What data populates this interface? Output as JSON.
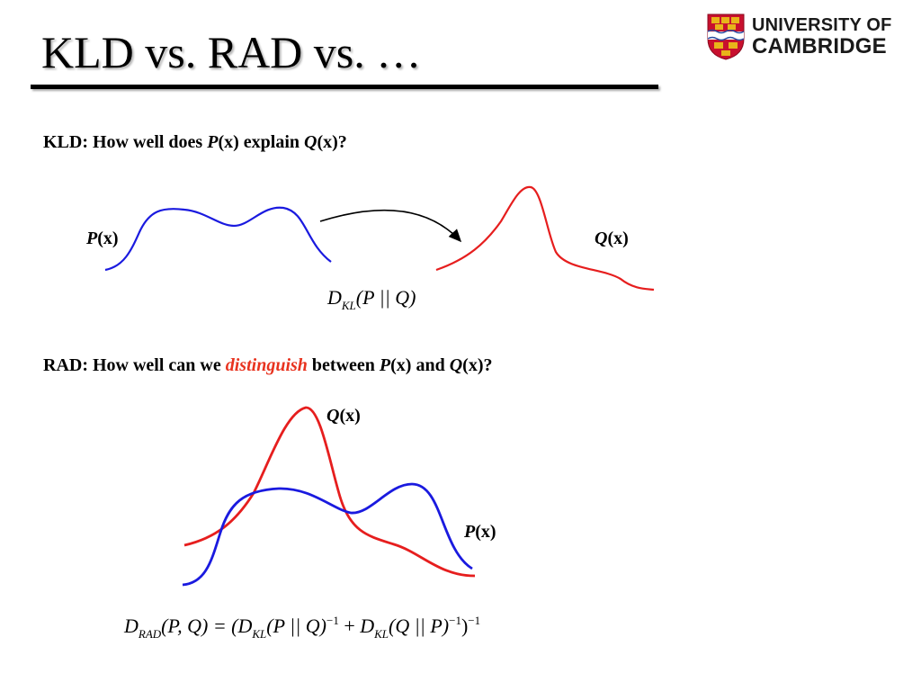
{
  "slide": {
    "title": "KLD vs. RAD vs. …"
  },
  "logo": {
    "line1": "UNIVERSITY OF",
    "line2": "CAMBRIDGE",
    "shield_colors": {
      "red": "#c8102e",
      "gold": "#e8b41a"
    }
  },
  "kld": {
    "question_prefix": "KLD: How well does ",
    "p": "P",
    "x_explain": "(x) explain ",
    "q": "Q",
    "x_end": "(x)?",
    "label_p_var": "P",
    "label_p_rest": "(x)",
    "label_q_var": "Q",
    "label_q_rest": "(x)",
    "formula": {
      "D": "D",
      "sub": "KL",
      "args": "(P || Q)"
    }
  },
  "rad": {
    "question_prefix": "RAD: How well can we ",
    "emph": "distinguish",
    "between": " between ",
    "p": "P",
    "x_and": "(x) and ",
    "q": "Q",
    "x_end": "(x)?",
    "label_q_var": "Q",
    "label_q_rest": "(x)",
    "label_p_var": "P",
    "label_p_rest": "(x)",
    "formula": {
      "D": "D",
      "sub_rad": "RAD",
      "args1": "(P, Q) = (",
      "D2": "D",
      "sub_kl": "KL",
      "args2": "(P || Q)",
      "exp": "−1",
      "plus": " + ",
      "D3": "D",
      "args3": "(Q || P)",
      "exp2": "−1",
      "close": ")",
      "exp3": "−1"
    }
  },
  "colors": {
    "p_curve": "#1a1adf",
    "q_curve": "#e61e1e",
    "emphasis": "#e8331f"
  }
}
